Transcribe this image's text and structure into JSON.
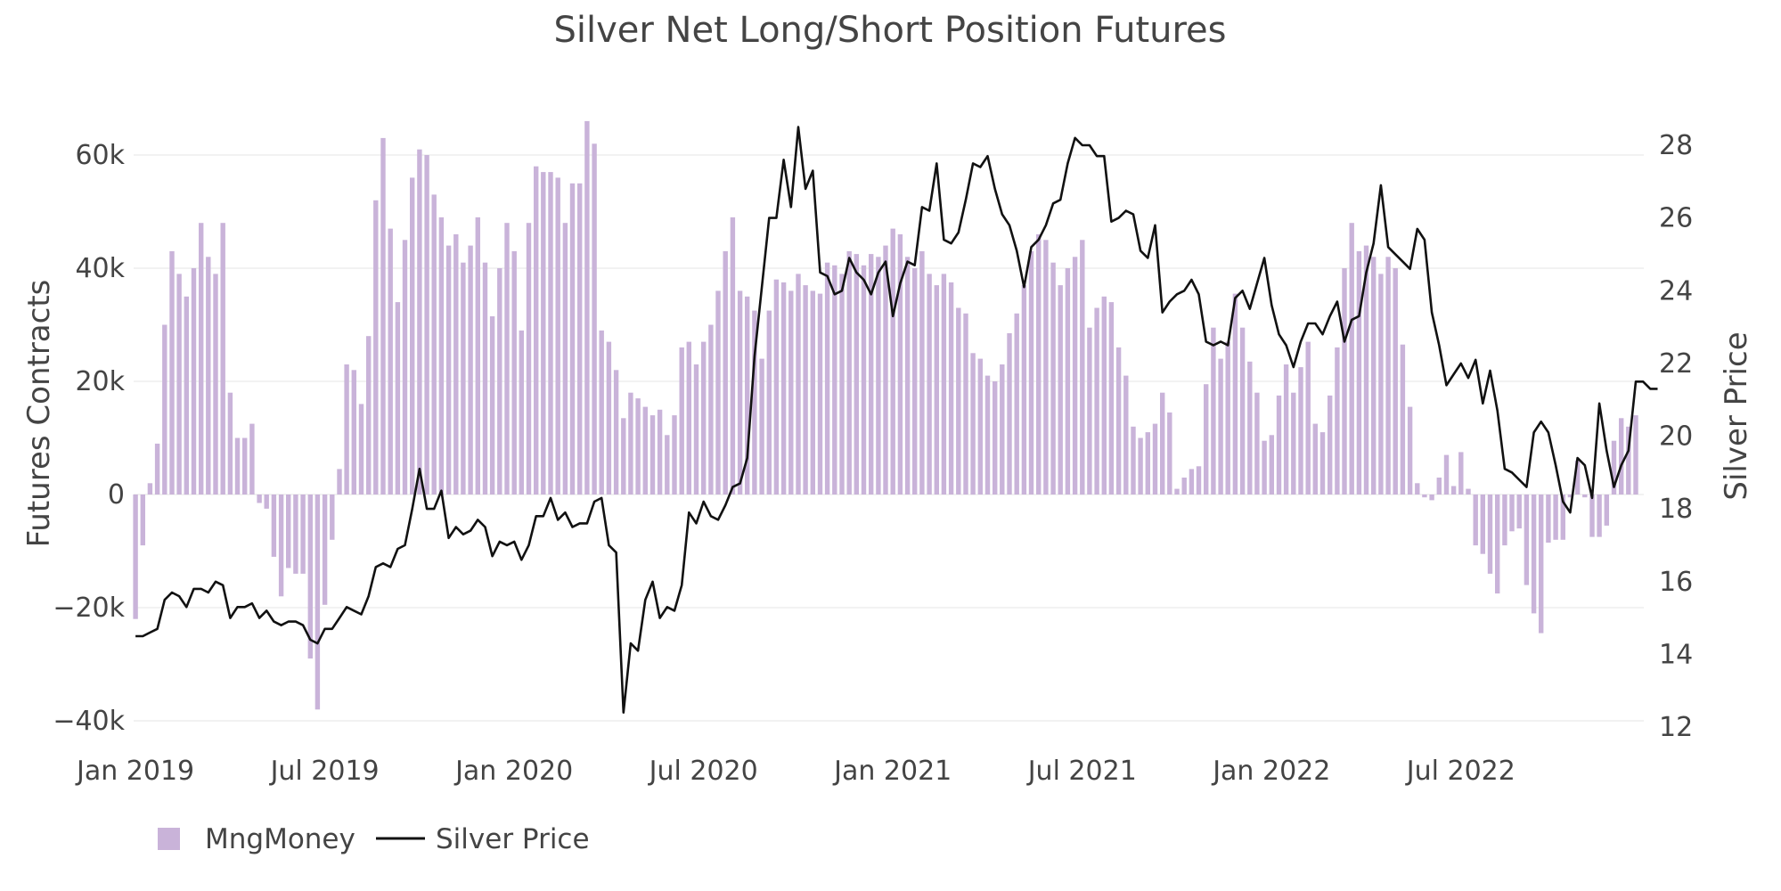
{
  "chart_data": {
    "type": "bar+line",
    "title": "Silver Net Long/Short Position Futures",
    "y_left_label": "Futures Contracts",
    "y_right_label": "Silver Price",
    "y_left_range": [
      -40000,
      66000
    ],
    "y_right_range": [
      12,
      28.5
    ],
    "y_left_ticks": [
      -40000,
      -20000,
      0,
      20000,
      40000,
      60000
    ],
    "y_left_tick_labels": [
      "−40k",
      "−20k",
      "0",
      "20k",
      "40k",
      "60k"
    ],
    "y_right_ticks": [
      12,
      14,
      16,
      18,
      20,
      22,
      24,
      26,
      28
    ],
    "y_right_tick_labels": [
      "12",
      "14",
      "16",
      "18",
      "20",
      "22",
      "24",
      "26",
      "28"
    ],
    "x_ticks": [
      {
        "label": "Jan 2019",
        "week": 1
      },
      {
        "label": "Jul 2019",
        "week": 27
      },
      {
        "label": "Jan 2020",
        "week": 53
      },
      {
        "label": "Jul 2020",
        "week": 79
      },
      {
        "label": "Jan 2021",
        "week": 105
      },
      {
        "label": "Jul 2021",
        "week": 131
      },
      {
        "label": "Jan 2022",
        "week": 157
      },
      {
        "label": "Jul 2022",
        "week": 183
      }
    ],
    "x_range": [
      0,
      206
    ],
    "legend": {
      "position": "bottom-left"
    },
    "series": [
      {
        "name": "MngMoney",
        "type": "bar",
        "color": "#c9b3d9",
        "values": [
          -22000,
          -9000,
          2000,
          9000,
          30000,
          43000,
          39000,
          35000,
          40000,
          48000,
          42000,
          39000,
          48000,
          18000,
          10000,
          10000,
          12500,
          -1500,
          -2500,
          -11000,
          -18000,
          -13000,
          -14000,
          -14000,
          -29000,
          -38000,
          -19500,
          -8000,
          4500,
          23000,
          22000,
          16000,
          28000,
          52000,
          63000,
          47000,
          34000,
          45000,
          56000,
          61000,
          60000,
          53000,
          49000,
          44000,
          46000,
          41000,
          44000,
          49000,
          41000,
          31500,
          40000,
          48000,
          43000,
          29000,
          48000,
          58000,
          57000,
          57000,
          56000,
          48000,
          55000,
          55000,
          66000,
          62000,
          29000,
          27000,
          22000,
          13500,
          18000,
          17000,
          15500,
          14000,
          15000,
          10500,
          14000,
          26000,
          27000,
          23000,
          27000,
          30000,
          36000,
          43000,
          49000,
          36000,
          35000,
          32500,
          24000,
          32500,
          38000,
          37500,
          36000,
          39000,
          37000,
          36000,
          35500,
          41000,
          40500,
          39000,
          43000,
          42500,
          40500,
          42500,
          42000,
          44000,
          47000,
          46000,
          42000,
          40000,
          43000,
          39000,
          37000,
          39000,
          37500,
          33000,
          32000,
          25000,
          24000,
          21000,
          20000,
          23000,
          28500,
          32000,
          37000,
          43000,
          46000,
          45000,
          41000,
          37000,
          40000,
          42000,
          45000,
          29500,
          33000,
          35000,
          34000,
          26000,
          21000,
          12000,
          10000,
          11000,
          12500,
          18000,
          14500,
          1000,
          3000,
          4500,
          5000,
          19500,
          29500,
          24000,
          27000,
          35500,
          29500,
          23500,
          18000,
          9500,
          10500,
          17500,
          23000,
          18000,
          22500,
          27000,
          12500,
          11000,
          17500,
          26000,
          40000,
          48000,
          43000,
          44000,
          42000,
          39000,
          42000,
          40000,
          26500,
          15500,
          2000,
          -500,
          -1000,
          3000,
          7000,
          1500,
          7500,
          1000,
          -9000,
          -10500,
          -14000,
          -17500,
          -9000,
          -6500,
          -6000,
          -16000,
          -21000,
          -24500,
          -8500,
          -8000,
          -8000,
          -500,
          6000,
          -500,
          -7500,
          -7500,
          -5500,
          9500,
          13500,
          12000,
          14000
        ]
      },
      {
        "name": "Silver Price",
        "type": "line",
        "color": "#111111",
        "values": [
          14.5,
          14.5,
          14.6,
          14.7,
          15.5,
          15.7,
          15.6,
          15.3,
          15.8,
          15.8,
          15.7,
          16.0,
          15.9,
          15.0,
          15.3,
          15.3,
          15.4,
          15.0,
          15.2,
          14.9,
          14.8,
          14.9,
          14.9,
          14.8,
          14.4,
          14.3,
          14.7,
          14.7,
          15.0,
          15.3,
          15.2,
          15.1,
          15.6,
          16.4,
          16.5,
          16.4,
          16.9,
          17.0,
          18.0,
          19.1,
          18.0,
          18.0,
          18.5,
          17.2,
          17.5,
          17.3,
          17.4,
          17.7,
          17.5,
          16.7,
          17.1,
          17.0,
          17.1,
          16.6,
          17.0,
          17.8,
          17.8,
          18.3,
          17.7,
          17.9,
          17.5,
          17.6,
          17.6,
          18.2,
          18.3,
          17.0,
          16.8,
          12.4,
          14.3,
          14.1,
          15.5,
          16.0,
          15.0,
          15.3,
          15.2,
          15.9,
          17.9,
          17.6,
          18.2,
          17.8,
          17.7,
          18.1,
          18.6,
          18.7,
          19.4,
          22.2,
          24.1,
          26.0,
          26.0,
          27.6,
          26.3,
          28.5,
          26.8,
          27.3,
          24.5,
          24.4,
          23.9,
          24.0,
          24.9,
          24.5,
          24.3,
          23.9,
          24.5,
          24.8,
          23.3,
          24.2,
          24.8,
          24.7,
          26.3,
          26.2,
          27.5,
          25.4,
          25.3,
          25.6,
          26.5,
          27.5,
          27.4,
          27.7,
          26.8,
          26.1,
          25.8,
          25.1,
          24.1,
          25.2,
          25.4,
          25.8,
          26.4,
          26.5,
          27.5,
          28.2,
          28.0,
          28.0,
          27.7,
          27.7,
          25.9,
          26.0,
          26.2,
          26.1,
          25.1,
          24.9,
          25.8,
          23.4,
          23.7,
          23.9,
          24.0,
          24.3,
          23.9,
          22.6,
          22.5,
          22.6,
          22.5,
          23.8,
          24.0,
          23.5,
          24.2,
          24.9,
          23.6,
          22.8,
          22.5,
          21.9,
          22.6,
          23.1,
          23.1,
          22.8,
          23.3,
          23.7,
          22.6,
          23.2,
          23.3,
          24.5,
          25.3,
          26.9,
          25.2,
          25.0,
          24.8,
          24.6,
          25.7,
          25.4,
          23.4,
          22.5,
          21.4,
          21.7,
          22.0,
          21.6,
          22.1,
          20.9,
          21.8,
          20.7,
          19.1,
          19.0,
          18.8,
          18.6,
          20.1,
          20.4,
          20.1,
          19.2,
          18.2,
          17.9,
          19.4,
          19.2,
          18.3,
          20.9,
          19.6,
          18.6,
          19.2,
          19.6,
          21.5,
          21.5,
          21.3,
          21.3
        ]
      }
    ]
  }
}
